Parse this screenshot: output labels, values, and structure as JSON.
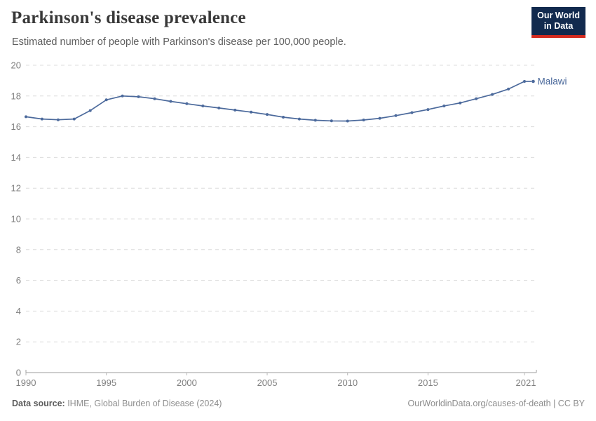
{
  "header": {
    "title": "Parkinson's disease prevalence",
    "subtitle": "Estimated number of people with Parkinson's disease per 100,000 people.",
    "logo": {
      "line1": "Our World",
      "line2": "in Data",
      "bg_color": "#122a4e",
      "accent_color": "#d42b20"
    }
  },
  "theme": {
    "line_color": "#4c6a9c",
    "grid_color": "#dcdcdc",
    "axis_color": "#9e9e9e",
    "tick_mark_color": "#b8b8b8",
    "tick_label_color": "#7f7f7f"
  },
  "chart_data": {
    "type": "line",
    "title": "Parkinson's disease prevalence",
    "subtitle": "Estimated number of people with Parkinson's disease per 100,000 people.",
    "xlabel": "",
    "ylabel": "",
    "xlim": [
      1990,
      2021
    ],
    "ylim": [
      0,
      20
    ],
    "x_ticks": [
      1990,
      1995,
      2000,
      2005,
      2010,
      2015,
      2021
    ],
    "y_ticks": [
      0,
      2,
      4,
      6,
      8,
      10,
      12,
      14,
      16,
      18,
      20
    ],
    "grid": "horizontal-dashed",
    "legend_position": "line-end-label",
    "x": [
      1990,
      1991,
      1992,
      1993,
      1994,
      1995,
      1996,
      1997,
      1998,
      1999,
      2000,
      2001,
      2002,
      2003,
      2004,
      2005,
      2006,
      2007,
      2008,
      2009,
      2010,
      2011,
      2012,
      2013,
      2014,
      2015,
      2016,
      2017,
      2018,
      2019,
      2020,
      2021
    ],
    "series": [
      {
        "name": "Malawi",
        "color": "#4c6a9c",
        "values": [
          16.65,
          16.5,
          16.45,
          16.5,
          17.05,
          17.75,
          18.0,
          17.95,
          17.82,
          17.65,
          17.5,
          17.35,
          17.22,
          17.08,
          16.95,
          16.8,
          16.62,
          16.5,
          16.42,
          16.38,
          16.37,
          16.44,
          16.55,
          16.72,
          16.92,
          17.12,
          17.35,
          17.55,
          17.82,
          18.1,
          18.45,
          18.95
        ]
      }
    ]
  },
  "footer": {
    "source_label": "Data source:",
    "source_text": " IHME, Global Burden of Disease (2024)",
    "credit_link": "OurWorldinData.org/causes-of-death",
    "credit_sep": " | ",
    "credit_license": "CC BY"
  }
}
